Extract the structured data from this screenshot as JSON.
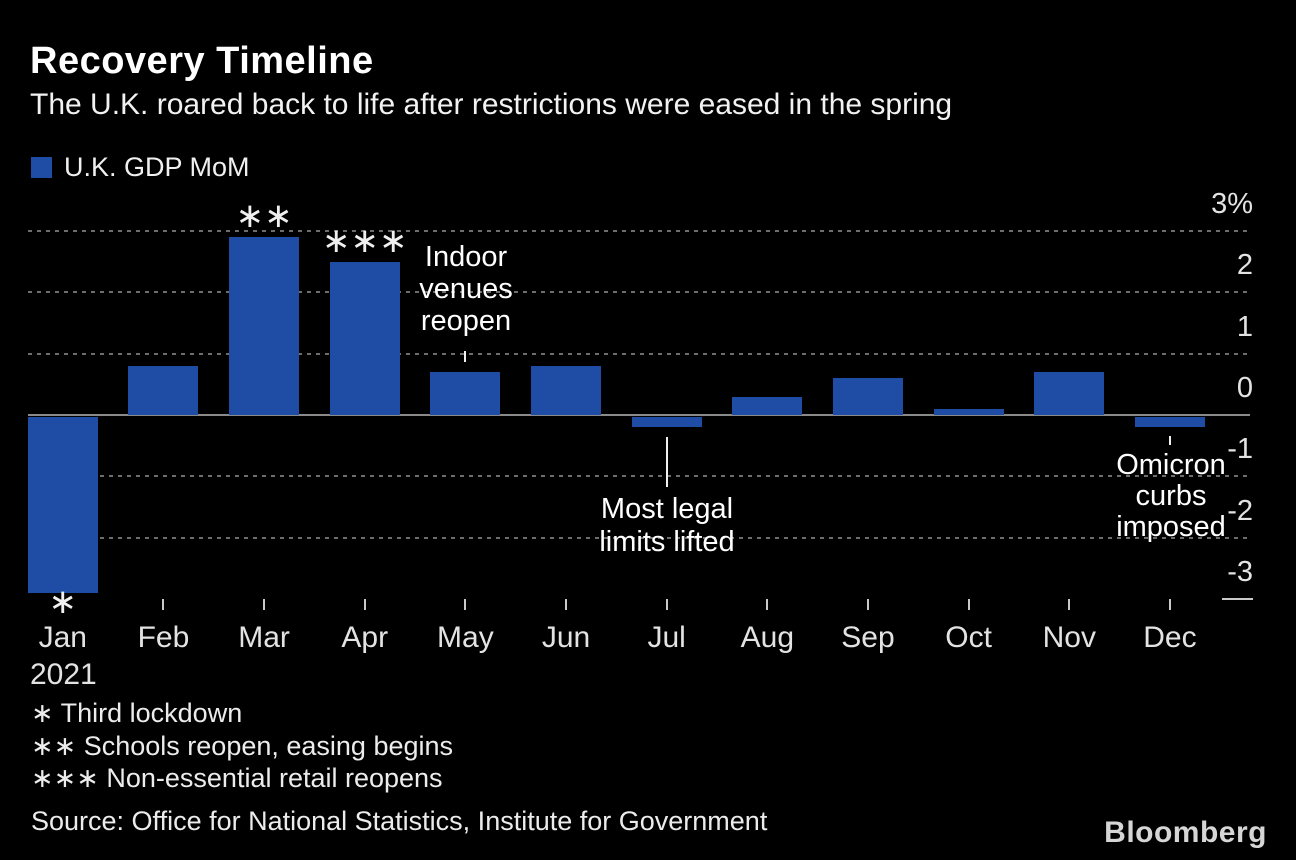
{
  "header": {
    "title": "Recovery Timeline",
    "subtitle": "The U.K. roared back to life after restrictions were eased in the spring"
  },
  "legend": {
    "label": "U.K. GDP MoM",
    "swatch_color": "#1f4da6"
  },
  "chart_data": {
    "type": "bar",
    "title": "Recovery Timeline",
    "subtitle": "The U.K. roared back to life after restrictions were eased in the spring",
    "series_name": "U.K. GDP MoM",
    "categories": [
      "Jan",
      "Feb",
      "Mar",
      "Apr",
      "May",
      "Jun",
      "Jul",
      "Aug",
      "Sep",
      "Oct",
      "Nov",
      "Dec"
    ],
    "x_first_tick_year": "2021",
    "values": [
      -2.9,
      0.8,
      2.9,
      2.5,
      0.7,
      0.8,
      -0.2,
      0.3,
      0.6,
      0.1,
      0.7,
      -0.2
    ],
    "unit": "%",
    "ylim": [
      -3,
      3
    ],
    "y_ticks": [
      {
        "value": 3,
        "label": "3%"
      },
      {
        "value": 2,
        "label": "2"
      },
      {
        "value": 1,
        "label": "1"
      },
      {
        "value": 0,
        "label": "0"
      },
      {
        "value": -1,
        "label": "-1"
      },
      {
        "value": -2,
        "label": "-2"
      },
      {
        "value": -3,
        "label": "-3"
      }
    ],
    "grid": "horizontal-dashed",
    "legend_position": "top-left",
    "axis_labels_side": "right",
    "bar_color": "#1f4da6",
    "annotations": [
      {
        "lines": [
          "Indoor",
          "venues",
          "reopen"
        ],
        "target_month": "May"
      },
      {
        "lines": [
          "Most legal",
          "limits lifted"
        ],
        "target_month": "Jul"
      },
      {
        "lines": [
          "Omicron",
          "curbs",
          "imposed"
        ],
        "target_month": "Dec"
      }
    ],
    "bar_markers": [
      {
        "month": "Jan",
        "marker": "∗",
        "position": "below"
      },
      {
        "month": "Mar",
        "marker": "∗∗",
        "position": "above"
      },
      {
        "month": "Apr",
        "marker": "∗∗∗",
        "position": "above"
      }
    ]
  },
  "footnotes": [
    "∗ Third lockdown",
    "∗∗ Schools reopen, easing begins",
    "∗∗∗ Non-essential retail reopens"
  ],
  "source": "Source: Office for National Statistics, Institute for Government",
  "branding": {
    "logo_text": "Bloomberg"
  }
}
